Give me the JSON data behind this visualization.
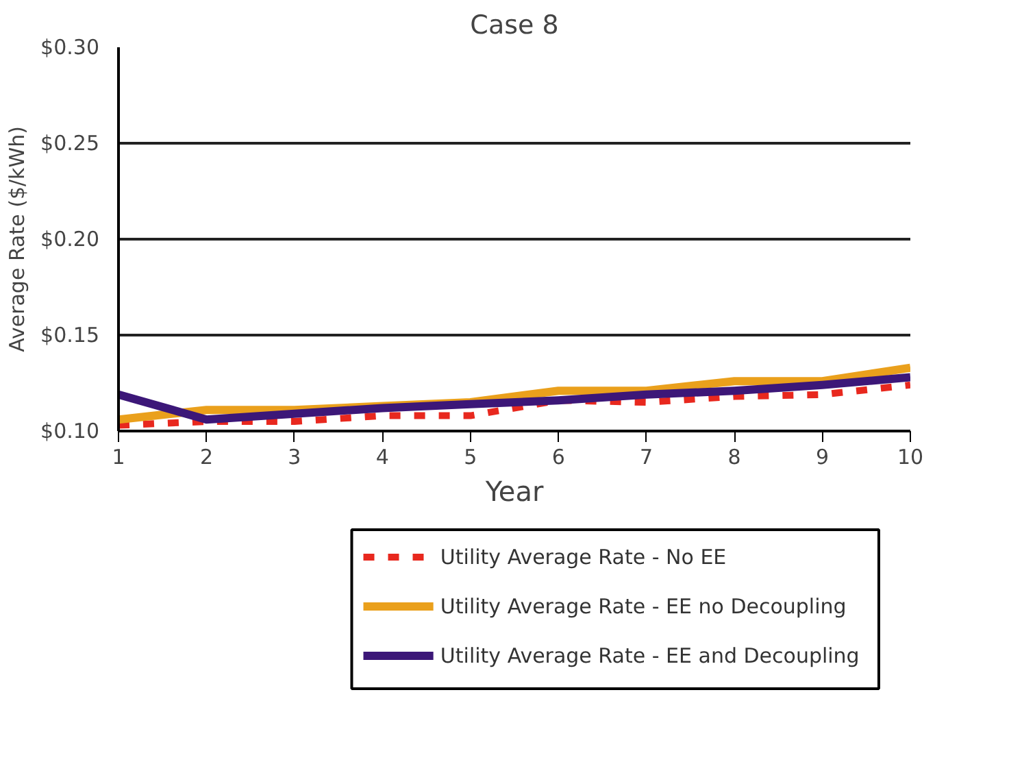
{
  "chart_data": {
    "type": "line",
    "title": "Case 8",
    "xlabel": "Year",
    "ylabel": "Average Rate ($/kWh)",
    "x": [
      1,
      2,
      3,
      4,
      5,
      6,
      7,
      8,
      9,
      10
    ],
    "xlim": [
      1,
      10
    ],
    "xticks": [
      1,
      2,
      3,
      4,
      5,
      6,
      7,
      8,
      9,
      10
    ],
    "ylim": [
      0.1,
      0.3
    ],
    "yticks": [
      {
        "value": 0.1,
        "label": "$0.10"
      },
      {
        "value": 0.15,
        "label": "$0.15"
      },
      {
        "value": 0.2,
        "label": "$0.20"
      },
      {
        "value": 0.25,
        "label": "$0.25"
      },
      {
        "value": 0.3,
        "label": "$0.30"
      }
    ],
    "grid": "y",
    "legend": "bottom",
    "marker": "none",
    "series": [
      {
        "name": "Utility Average Rate - No EE",
        "color": "#e8281e",
        "line_style": "dashed",
        "values": [
          0.103,
          0.105,
          0.105,
          0.108,
          0.108,
          0.116,
          0.115,
          0.118,
          0.119,
          0.124
        ]
      },
      {
        "name": "Utility Average Rate - EE no Decoupling",
        "color": "#eaa01c",
        "line_style": "solid",
        "values": [
          0.106,
          0.111,
          0.111,
          0.113,
          0.115,
          0.121,
          0.121,
          0.126,
          0.126,
          0.133
        ]
      },
      {
        "name": "Utility Average Rate - EE and Decoupling",
        "color": "#3c1778",
        "line_style": "solid",
        "values": [
          0.119,
          0.106,
          0.109,
          0.112,
          0.114,
          0.116,
          0.119,
          0.121,
          0.124,
          0.128
        ]
      }
    ]
  }
}
